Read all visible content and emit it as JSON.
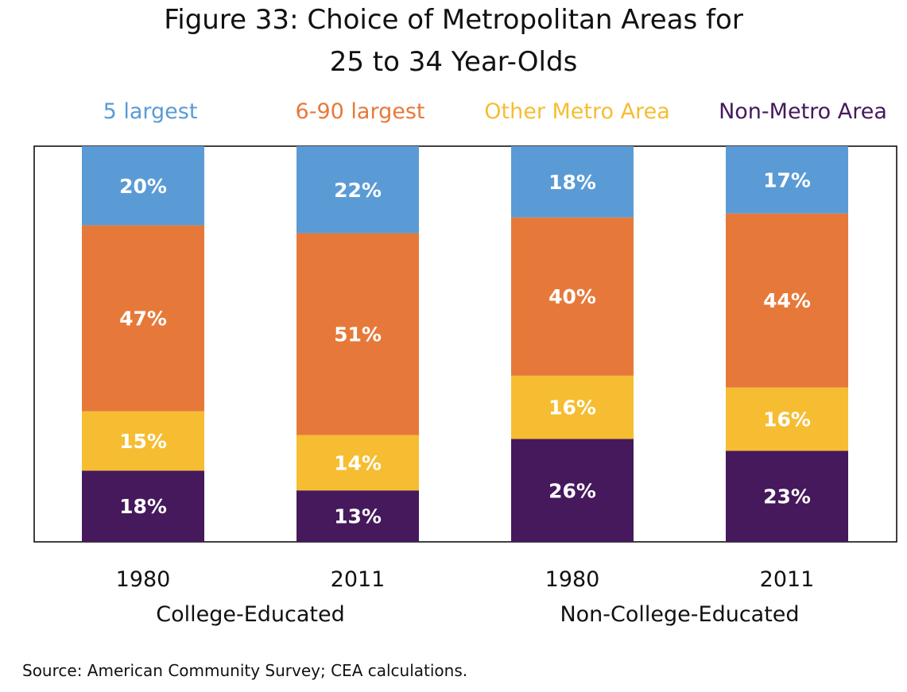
{
  "chart_data": {
    "type": "bar",
    "stacked": true,
    "orientation": "vertical",
    "title_lines": [
      "Figure 33: Choice of Metropolitan Areas for",
      "25 to 34 Year-Olds"
    ],
    "categories": [
      "1980",
      "2011",
      "1980",
      "2011"
    ],
    "groups": [
      {
        "label": "College-Educated",
        "categories": [
          "1980",
          "2011"
        ]
      },
      {
        "label": "Non-College-Educated",
        "categories": [
          "1980",
          "2011"
        ]
      }
    ],
    "series_order_top_to_bottom": [
      "5 largest",
      "6-90 largest",
      "Other Metro Area",
      "Non-Metro Area"
    ],
    "series": [
      {
        "name": "Non-Metro Area",
        "color": "#45195c",
        "values": [
          18,
          13,
          26,
          23
        ],
        "labels": [
          "18%",
          "13%",
          "26%",
          "23%"
        ]
      },
      {
        "name": "Other Metro Area",
        "color": "#f6bd32",
        "values": [
          15,
          14,
          16,
          16
        ],
        "labels": [
          "15%",
          "14%",
          "16%",
          "16%"
        ]
      },
      {
        "name": "6-90 largest",
        "color": "#e6793a",
        "values": [
          47,
          51,
          40,
          44
        ],
        "labels": [
          "47%",
          "51%",
          "40%",
          "44%"
        ]
      },
      {
        "name": "5 largest",
        "color": "#5b9bd5",
        "values": [
          20,
          22,
          18,
          17
        ],
        "labels": [
          "20%",
          "22%",
          "18%",
          "17%"
        ]
      }
    ],
    "ylim": [
      0,
      100
    ],
    "grid": false,
    "legend": "top",
    "source": "Source: American Community Survey; CEA calculations."
  }
}
